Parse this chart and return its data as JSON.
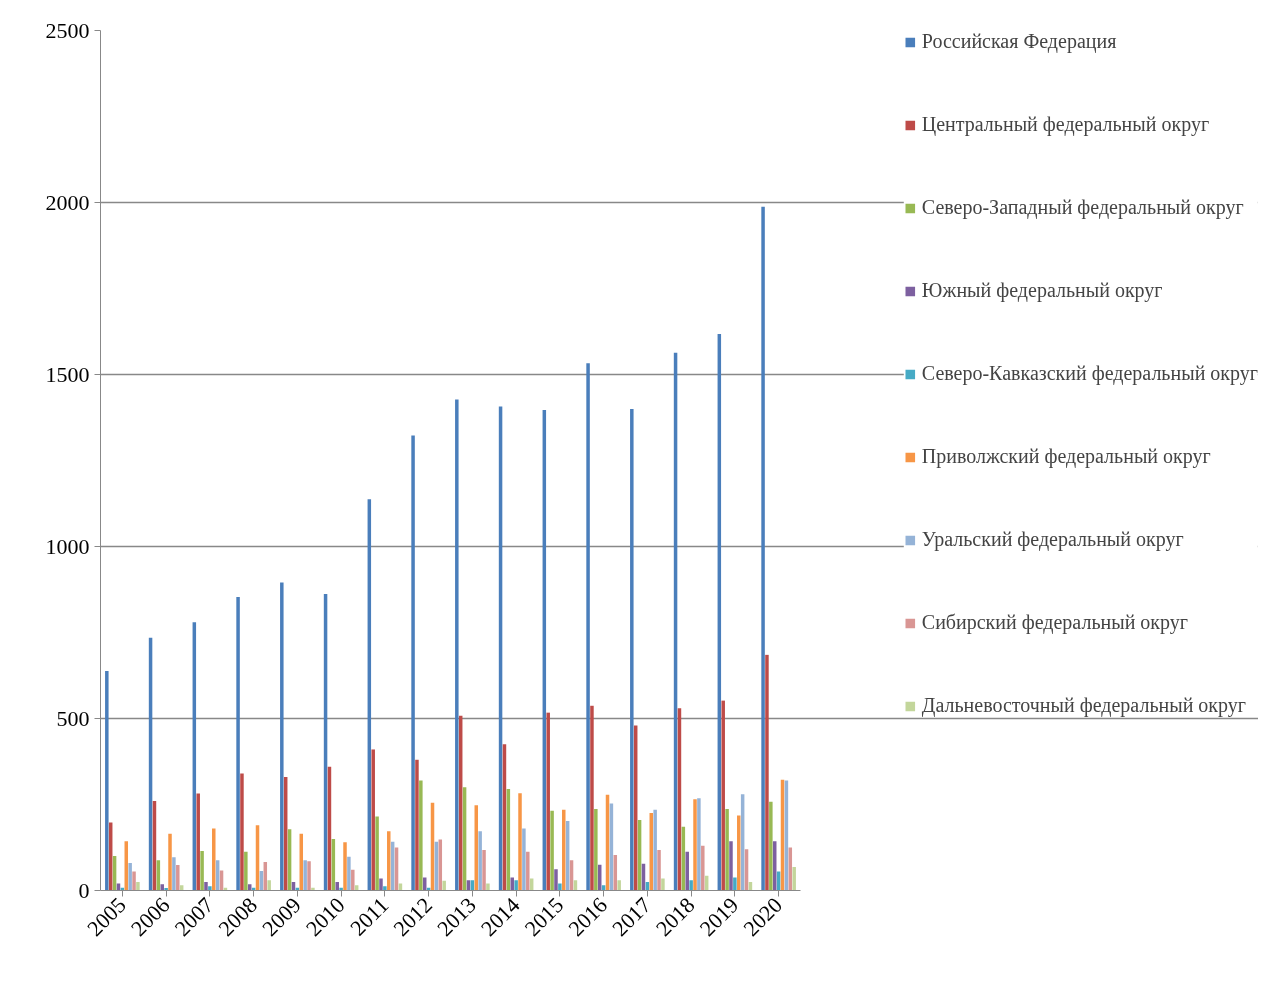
{
  "chart_data": {
    "type": "bar",
    "categories": [
      "2005",
      "2006",
      "2007",
      "2008",
      "2009",
      "2010",
      "2011",
      "2012",
      "2013",
      "2014",
      "2015",
      "2016",
      "2017",
      "2018",
      "2019",
      "2020"
    ],
    "ylim": [
      0,
      2500
    ],
    "yticks": [
      0,
      500,
      1000,
      1500,
      2000,
      2500
    ],
    "grid": "y",
    "legend": "right",
    "series": [
      {
        "name": "Российская Федерация",
        "color": "#4a7ebb",
        "values": [
          638,
          735,
          780,
          853,
          895,
          862,
          1137,
          1323,
          1427,
          1407,
          1397,
          1533,
          1400,
          1563,
          1618,
          1988
        ]
      },
      {
        "name": "Центральный федеральный округ",
        "color": "#be4b48",
        "values": [
          198,
          260,
          282,
          340,
          330,
          360,
          410,
          380,
          508,
          425,
          517,
          537,
          480,
          530,
          552,
          685
        ]
      },
      {
        "name": "Северо-Западный федеральный округ",
        "color": "#98b954",
        "values": [
          100,
          88,
          115,
          113,
          178,
          150,
          215,
          320,
          300,
          295,
          232,
          237,
          205,
          185,
          237,
          258
        ]
      },
      {
        "name": "Южный федеральный округ",
        "color": "#7d60a0",
        "values": [
          20,
          18,
          25,
          18,
          25,
          25,
          35,
          38,
          30,
          38,
          62,
          75,
          78,
          113,
          143,
          143
        ]
      },
      {
        "name": "Северо-Кавказский федеральный округ",
        "color": "#46aac5",
        "values": [
          8,
          7,
          12,
          8,
          8,
          8,
          12,
          8,
          30,
          30,
          20,
          15,
          25,
          30,
          38,
          55
        ]
      },
      {
        "name": "Приволжский федеральный округ",
        "color": "#f79646",
        "values": [
          143,
          165,
          180,
          190,
          165,
          140,
          172,
          255,
          248,
          283,
          235,
          278,
          225,
          265,
          218,
          322
        ]
      },
      {
        "name": "Уральский федеральный округ",
        "color": "#95b3d7",
        "values": [
          80,
          97,
          88,
          57,
          88,
          98,
          142,
          142,
          172,
          180,
          202,
          253,
          235,
          268,
          280,
          320
        ]
      },
      {
        "name": "Сибирский федеральный округ",
        "color": "#d99694",
        "values": [
          55,
          74,
          58,
          83,
          85,
          60,
          125,
          148,
          118,
          113,
          88,
          103,
          118,
          130,
          120,
          125
        ]
      },
      {
        "name": "Дальневосточный федеральный округ",
        "color": "#c3d69b",
        "values": [
          25,
          15,
          8,
          30,
          8,
          15,
          20,
          28,
          20,
          35,
          30,
          30,
          35,
          43,
          25,
          68
        ]
      }
    ]
  }
}
